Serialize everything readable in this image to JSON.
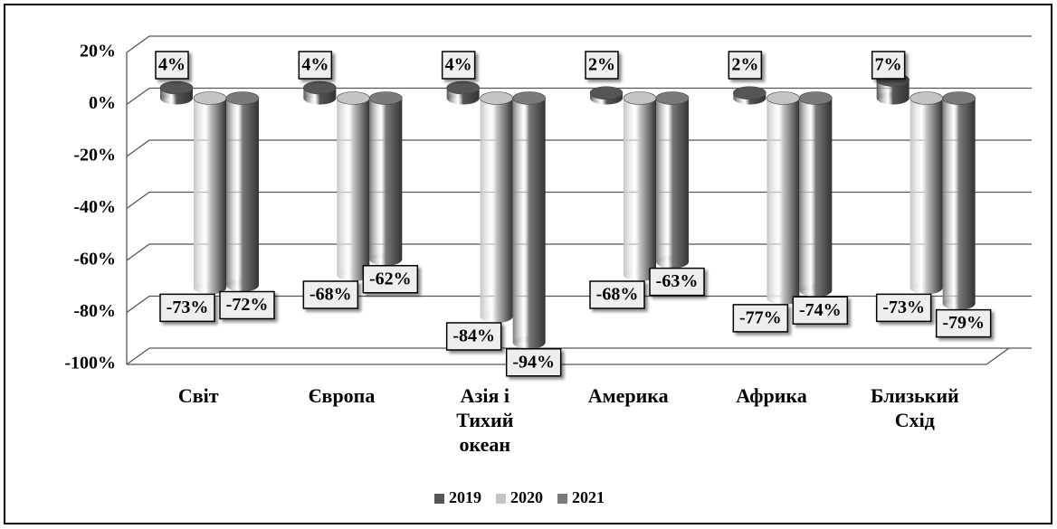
{
  "chart_data": {
    "type": "bar3d",
    "categories": [
      "Світ",
      "Європа",
      "Азія і Тихий океан",
      "Америка",
      "Африка",
      "Близький Схід"
    ],
    "series": [
      {
        "name": "2019",
        "color": "#555555",
        "values": [
          4,
          4,
          4,
          2,
          2,
          7
        ],
        "value_labels": [
          "4%",
          "4%",
          "4%",
          "2%",
          "2%",
          "7%"
        ]
      },
      {
        "name": "2020",
        "color": "#c4c4c4",
        "values": [
          -73,
          -68,
          -84,
          -68,
          -77,
          -73
        ],
        "value_labels": [
          "-73%",
          "-68%",
          "-84%",
          "-68%",
          "-77%",
          "-73%"
        ]
      },
      {
        "name": "2021",
        "color": "#7a7a7a",
        "values": [
          -72,
          -62,
          -94,
          -63,
          -74,
          -79
        ],
        "value_labels": [
          "-72%",
          "-62%",
          "-94%",
          "-63%",
          "-74%",
          "-79%"
        ]
      }
    ],
    "ylim": [
      -100,
      20
    ],
    "yticks": [
      {
        "value": 20,
        "label": "20%"
      },
      {
        "value": 0,
        "label": "0%"
      },
      {
        "value": -20,
        "label": "-20%"
      },
      {
        "value": -40,
        "label": "-40%"
      },
      {
        "value": -60,
        "label": "-60%"
      },
      {
        "value": -80,
        "label": "-80%"
      },
      {
        "value": -100,
        "label": "-100%"
      }
    ],
    "grid": true,
    "legend": "bottom"
  }
}
